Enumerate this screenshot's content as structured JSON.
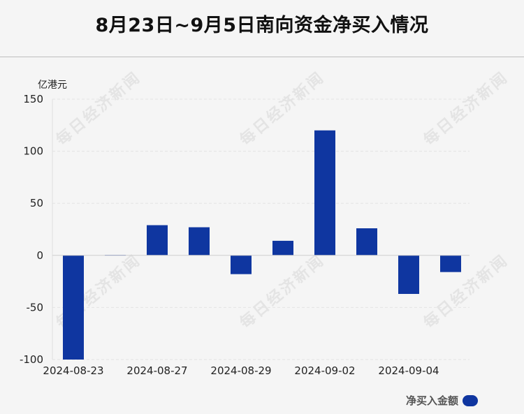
{
  "title": "8月23日~9月5日南向资金净买入情况",
  "unit_label": "亿港元",
  "watermark_text": "每日经济新闻",
  "legend": {
    "label": "净买入金额",
    "color": "#0f36a0"
  },
  "chart_data": {
    "type": "bar",
    "title": "8月23日~9月5日南向资金净买入情况",
    "ylabel": "亿港元",
    "xlabel": "",
    "ylim": [
      -100,
      150
    ],
    "yticks": [
      150,
      100,
      50,
      0,
      -50,
      -100
    ],
    "grid": true,
    "legend_position": "bottom-right",
    "x_tick_labels": [
      "2024-08-23",
      "2024-08-27",
      "2024-08-29",
      "2024-09-02",
      "2024-09-04"
    ],
    "series": [
      {
        "name": "净买入金额",
        "color": "#0f36a0",
        "values": [
          -100,
          0.5,
          29,
          27,
          -18,
          14,
          120,
          26,
          -37,
          -16
        ]
      }
    ]
  }
}
